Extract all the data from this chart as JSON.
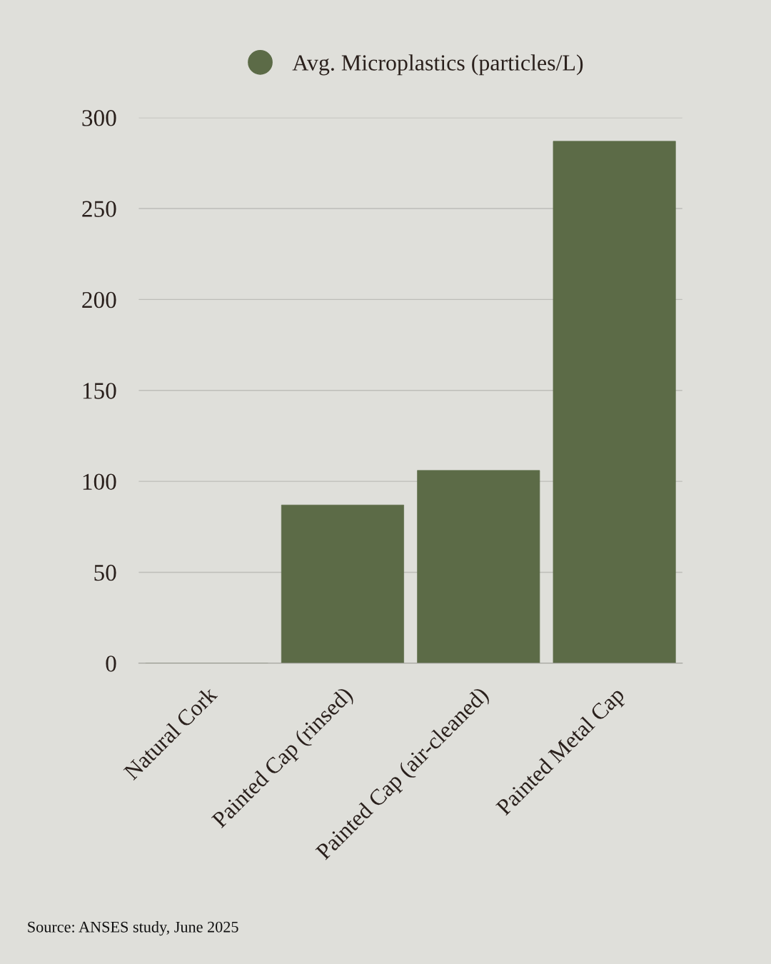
{
  "chart_data": {
    "type": "bar",
    "categories": [
      "Natural Cork",
      "Painted Cap (rinsed)",
      "Painted Cap (air-cleaned)",
      "Painted Metal Cap"
    ],
    "series": [
      {
        "name": "Avg. Microplastics (particles/L)",
        "color": "#5c6b47",
        "values": [
          0,
          87,
          106,
          287
        ]
      }
    ],
    "ylim": [
      0,
      300
    ],
    "yticks": [
      0,
      50,
      100,
      150,
      200,
      250,
      300
    ],
    "grid": "y",
    "legend": "top",
    "annotations": [
      "Source: ANSES study, June 2025"
    ]
  }
}
